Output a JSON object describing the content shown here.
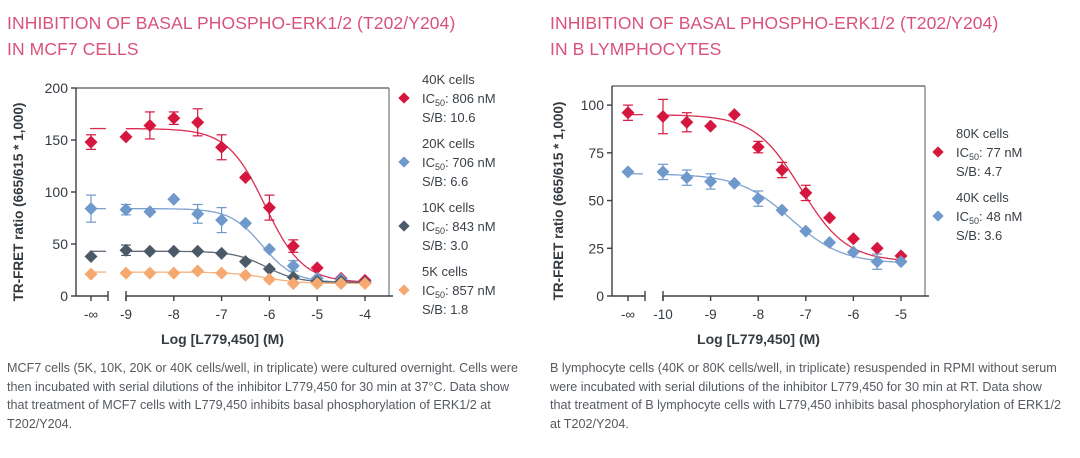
{
  "chart_data": [
    {
      "type": "scatter",
      "id": "mcf7",
      "title": "INHIBITION OF BASAL PHOSPHO-ERK1/2 (T202/Y204) IN MCF7 CELLS",
      "title_lines": [
        "INHIBITION OF BASAL PHOSPHO-ERK1/2 (T202/Y204)",
        "IN MCF7 CELLS"
      ],
      "xlabel": "Log [L779,450] (M)",
      "ylabel": "TR-FRET ratio (665/615 * 1,000)",
      "ylim": [
        0,
        200
      ],
      "yticks": [
        0,
        50,
        100,
        150,
        200
      ],
      "xlim": [
        -9,
        -4
      ],
      "xticks": [
        "-∞",
        "-9",
        "-8",
        "-7",
        "-6",
        "-5",
        "-4"
      ],
      "xtick_values": [
        null,
        -9,
        -8,
        -7,
        -6,
        -5,
        -4
      ],
      "grid": false,
      "legend_position": "right",
      "caption": "MCF7 cells (5K, 10K, 20K or 40K cells/well, in triplicate) were cultured overnight. Cells were then incubated with serial dilutions of the inhibitor L779,450 for 30 min at 37°C. Data show that treatment of MCF7 cells with L779,450 inhibits basal phosphorylation of ERK1/2 at T202/Y204.",
      "series": [
        {
          "name": "40K cells",
          "ic50_label": "806 nM",
          "sb_label": "10.6",
          "color": "#d5173f",
          "ic50_log": -6.09,
          "top": 161,
          "bottom": 13,
          "hill": 1.1,
          "blank": {
            "y": 148,
            "err": 7
          },
          "x": [
            -9,
            -8.5,
            -8,
            -7.5,
            -7,
            -6.5,
            -6,
            -5.5,
            -5,
            -4.5,
            -4
          ],
          "y": [
            153,
            164,
            171,
            167,
            143,
            114,
            85,
            48,
            27,
            17,
            15
          ],
          "err": [
            0,
            13,
            6,
            13,
            12,
            0,
            12,
            6,
            0,
            0,
            0
          ]
        },
        {
          "name": "20K cells",
          "ic50_label": "706 nM",
          "sb_label": "6.6",
          "color": "#6f98cb",
          "ic50_log": -6.15,
          "top": 84,
          "bottom": 13,
          "hill": 1.3,
          "blank": {
            "y": 84,
            "err": 13
          },
          "x": [
            -9,
            -8.5,
            -8,
            -7.5,
            -7,
            -6.5,
            -6,
            -5.5,
            -5,
            -4.5,
            -4
          ],
          "y": [
            83,
            81,
            93,
            79,
            73,
            70,
            45,
            29,
            17,
            16,
            13
          ],
          "err": [
            5,
            0,
            0,
            9,
            12,
            0,
            0,
            5,
            0,
            0,
            0
          ]
        },
        {
          "name": "10K cells",
          "ic50_label": "843 nM",
          "sb_label": "3.0",
          "color": "#4c5a68",
          "ic50_log": -6.07,
          "top": 43,
          "bottom": 13,
          "hill": 1.3,
          "blank": {
            "y": 38,
            "err": 0
          },
          "x": [
            -9,
            -8.5,
            -8,
            -7.5,
            -7,
            -6.5,
            -6,
            -5.5,
            -5,
            -4.5,
            -4
          ],
          "y": [
            44,
            43,
            43,
            43,
            41,
            33,
            26,
            18,
            14,
            14,
            13
          ],
          "err": [
            5,
            0,
            0,
            0,
            0,
            0,
            0,
            0,
            0,
            0,
            0
          ]
        },
        {
          "name": "5K cells",
          "ic50_label": "857 nM",
          "sb_label": "1.8",
          "color": "#f5a870",
          "ic50_log": -6.07,
          "top": 23,
          "bottom": 12,
          "hill": 1.2,
          "blank": {
            "y": 21,
            "err": 0
          },
          "x": [
            -9,
            -8.5,
            -8,
            -7.5,
            -7,
            -6.5,
            -6,
            -5.5,
            -5,
            -4.5,
            -4
          ],
          "y": [
            22,
            22,
            22,
            24,
            22,
            20,
            16,
            12,
            12,
            12,
            12
          ],
          "err": [
            0,
            0,
            0,
            0,
            0,
            0,
            0,
            0,
            0,
            0,
            0
          ]
        }
      ]
    },
    {
      "type": "scatter",
      "id": "blymph",
      "title": "INHIBITION OF BASAL PHOSPHO-ERK1/2 (T202/Y204) IN B LYMPHOCYTES",
      "title_lines": [
        "INHIBITION OF BASAL PHOSPHO-ERK1/2 (T202/Y204)",
        "IN B LYMPHOCYTES"
      ],
      "xlabel": "Log [L779,450] (M)",
      "ylabel": "TR-FRET ratio (665/615 * 1,000)",
      "ylim": [
        0,
        110
      ],
      "yticks": [
        0,
        25,
        50,
        75,
        100
      ],
      "xlim": [
        -10,
        -5
      ],
      "xticks": [
        "-∞",
        "-10",
        "-9",
        "-8",
        "-7",
        "-6",
        "-5"
      ],
      "xtick_values": [
        null,
        -10,
        -9,
        -8,
        -7,
        -6,
        -5
      ],
      "grid": false,
      "legend_position": "right",
      "caption": "B lymphocyte cells (40K or 80K cells/well, in triplicate) resuspended in RPMI without serum were incubated with serial dilutions of the inhibitor L779,450 for 30 min at RT. Data show that treatment of B lymphocyte cells with L779,450 inhibits basal phosphorylation of ERK1/2 at T202/Y204.",
      "series": [
        {
          "name": "80K cells",
          "ic50_label": "77 nM",
          "sb_label": "4.7",
          "color": "#d5173f",
          "ic50_log": -7.11,
          "top": 95,
          "bottom": 18,
          "hill": 0.9,
          "blank": {
            "y": 96,
            "err": 4
          },
          "x": [
            -10,
            -9.5,
            -9,
            -8.5,
            -8,
            -7.5,
            -7,
            -6.5,
            -6,
            -5.5,
            -5
          ],
          "y": [
            94,
            91,
            89,
            95,
            78,
            66,
            54,
            41,
            30,
            25,
            21
          ],
          "err": [
            9,
            5,
            0,
            0,
            3,
            4,
            4,
            0,
            0,
            0,
            0
          ]
        },
        {
          "name": "40K cells",
          "ic50_label": "48 nM",
          "sb_label": "3.6",
          "color": "#6f98cb",
          "ic50_log": -7.32,
          "top": 64,
          "bottom": 17,
          "hill": 0.8,
          "blank": {
            "y": 65,
            "err": 0
          },
          "x": [
            -10,
            -9.5,
            -9,
            -8.5,
            -8,
            -7.5,
            -7,
            -6.5,
            -6,
            -5.5,
            -5
          ],
          "y": [
            65,
            62,
            60,
            59,
            51,
            45,
            34,
            28,
            23,
            18,
            18
          ],
          "err": [
            4,
            4,
            4,
            0,
            4,
            0,
            0,
            0,
            0,
            4,
            0
          ]
        }
      ]
    }
  ]
}
